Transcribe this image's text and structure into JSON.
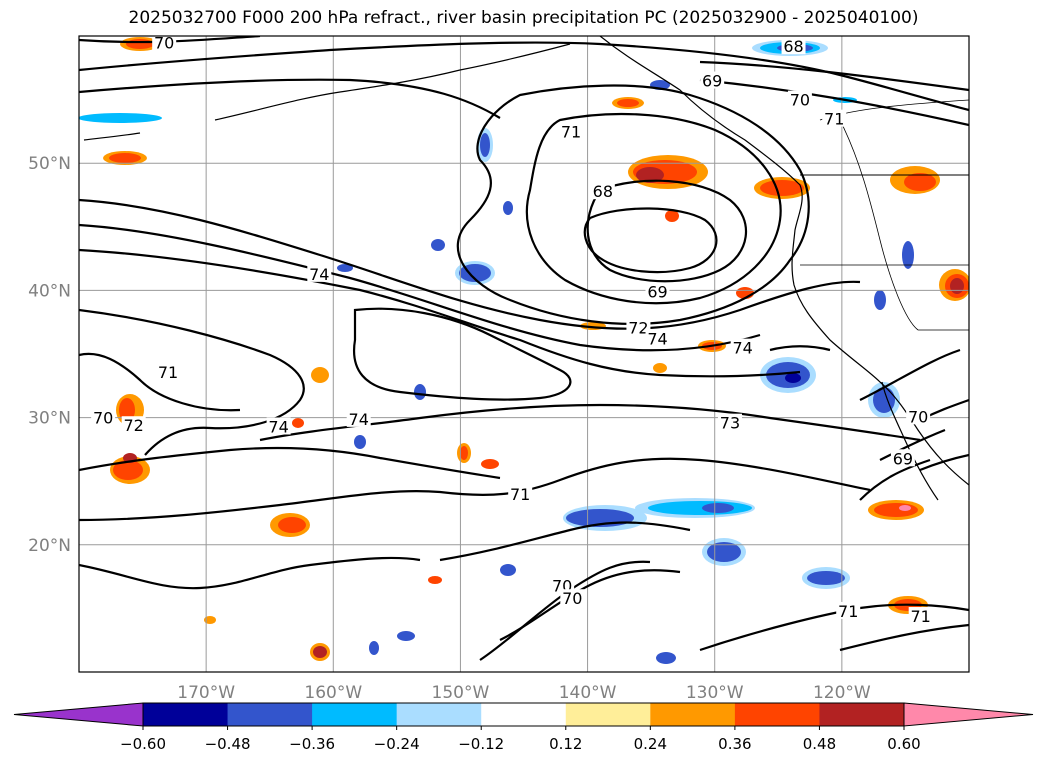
{
  "title": "2025032700 F000 200 hPa refract., river basin precipitation PC (2025032900 - 2025040100)",
  "map": {
    "lon_range": [
      -180,
      -110
    ],
    "lat_range": [
      10,
      60
    ],
    "lon_ticks": [
      {
        "value": -170,
        "label": "170°W"
      },
      {
        "value": -160,
        "label": "160°W"
      },
      {
        "value": -150,
        "label": "150°W"
      },
      {
        "value": -140,
        "label": "140°W"
      },
      {
        "value": -130,
        "label": "130°W"
      },
      {
        "value": -120,
        "label": "120°W"
      }
    ],
    "lat_ticks": [
      {
        "value": 20,
        "label": "20°N"
      },
      {
        "value": 30,
        "label": "30°N"
      },
      {
        "value": 40,
        "label": "40°N"
      },
      {
        "value": 50,
        "label": "50°N"
      }
    ],
    "contour_labels": [
      {
        "text": "70",
        "lon": -173.3,
        "lat": 59.5
      },
      {
        "text": "68",
        "lon": -123.8,
        "lat": 59.2
      },
      {
        "text": "69",
        "lon": -130.2,
        "lat": 56.5
      },
      {
        "text": "70",
        "lon": -123.3,
        "lat": 55.0
      },
      {
        "text": "71",
        "lon": -120.6,
        "lat": 53.5
      },
      {
        "text": "71",
        "lon": -141.3,
        "lat": 52.5
      },
      {
        "text": "68",
        "lon": -138.8,
        "lat": 47.8
      },
      {
        "text": "74",
        "lon": -161.1,
        "lat": 41.3
      },
      {
        "text": "69",
        "lon": -134.5,
        "lat": 39.9
      },
      {
        "text": "72",
        "lon": -136.0,
        "lat": 37.1
      },
      {
        "text": "74",
        "lon": -134.5,
        "lat": 36.2
      },
      {
        "text": "74",
        "lon": -127.8,
        "lat": 35.5
      },
      {
        "text": "71",
        "lon": -173.0,
        "lat": 33.6
      },
      {
        "text": "70",
        "lon": -178.1,
        "lat": 30.0
      },
      {
        "text": "72",
        "lon": -175.7,
        "lat": 29.4
      },
      {
        "text": "74",
        "lon": -164.3,
        "lat": 29.3
      },
      {
        "text": "74",
        "lon": -158.0,
        "lat": 29.9
      },
      {
        "text": "73",
        "lon": -128.8,
        "lat": 29.6
      },
      {
        "text": "70",
        "lon": -114.0,
        "lat": 30.1
      },
      {
        "text": "69",
        "lon": -115.2,
        "lat": 26.8
      },
      {
        "text": "71",
        "lon": -145.3,
        "lat": 24.0
      },
      {
        "text": "70",
        "lon": -142.0,
        "lat": 16.8
      },
      {
        "text": "70",
        "lon": -141.2,
        "lat": 15.8
      },
      {
        "text": "71",
        "lon": -119.5,
        "lat": 14.8
      },
      {
        "text": "71",
        "lon": -113.8,
        "lat": 14.4
      }
    ]
  },
  "colorbar": {
    "colors": [
      "#9933cc",
      "#000099",
      "#3355cc",
      "#00bbff",
      "#aaddff",
      "#ffffff",
      "#ffee99",
      "#ff9900",
      "#ff4400",
      "#b22222",
      "#ff88aa"
    ],
    "tick_labels": [
      "−0.60",
      "−0.48",
      "−0.36",
      "−0.24",
      "−0.12",
      "0.12",
      "0.24",
      "0.36",
      "0.48",
      "0.60"
    ]
  }
}
